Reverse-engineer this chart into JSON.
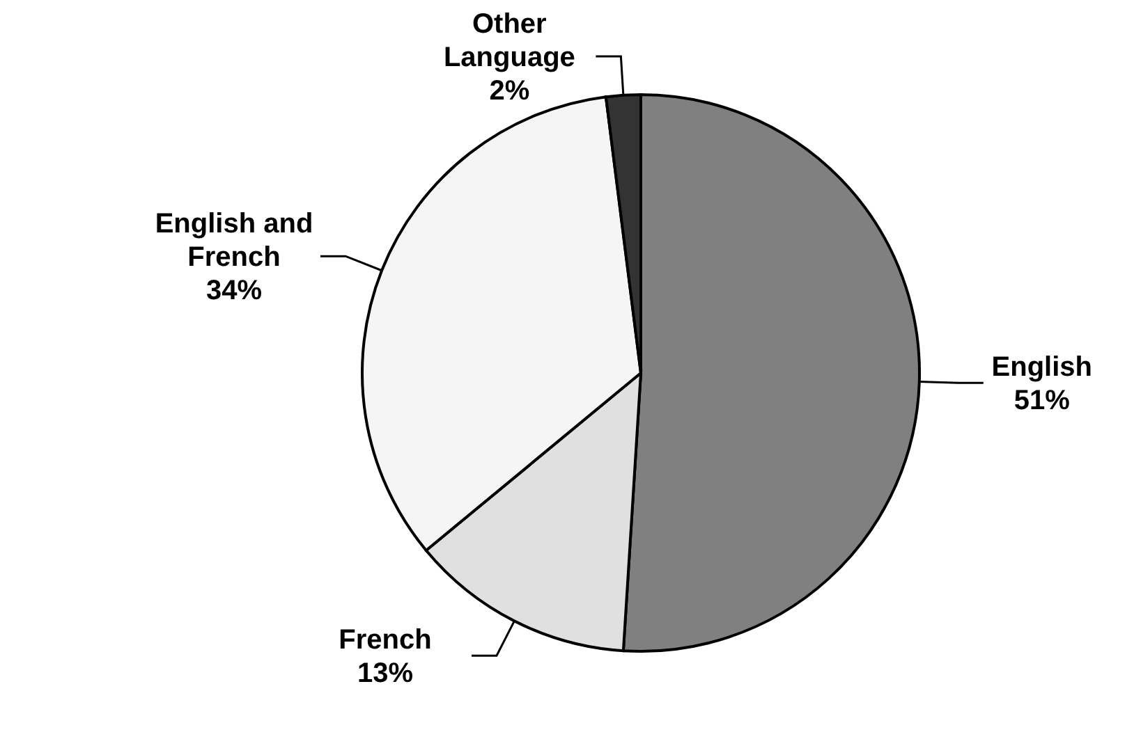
{
  "chart_data": {
    "type": "pie",
    "categories": [
      "English",
      "French",
      "English and French",
      "Other Language"
    ],
    "values": [
      51,
      13,
      34,
      2
    ],
    "value_labels": [
      "51%",
      "13%",
      "34%",
      "2%"
    ],
    "colors": [
      "#808080",
      "#e0e0e0",
      "#f5f5f5",
      "#333333"
    ]
  }
}
